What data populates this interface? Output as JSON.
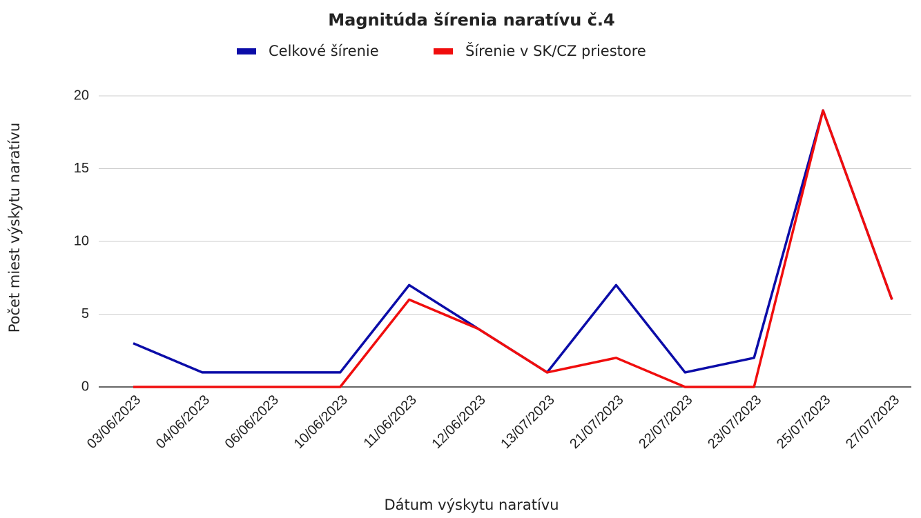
{
  "chart_data": {
    "type": "line",
    "title": "Magnitúda šírenia naratívu č.4",
    "x_label": "Dátum výskytu naratívu",
    "y_label": "Počet miest výskytu naratívu",
    "categories": [
      "03/06/2023",
      "04/06/2023",
      "06/06/2023",
      "10/06/2023",
      "11/06/2023",
      "12/06/2023",
      "13/07/2023",
      "21/07/2023",
      "22/07/2023",
      "23/07/2023",
      "25/07/2023",
      "27/07/2023"
    ],
    "series": [
      {
        "name": "Celkové šírenie",
        "color": "#0b0ca8",
        "values": [
          3,
          1,
          1,
          1,
          7,
          4,
          1,
          7,
          1,
          2,
          19,
          6
        ]
      },
      {
        "name": "Šírenie v SK/CZ priestore",
        "color": "#f00d0d",
        "values": [
          0,
          0,
          0,
          0,
          6,
          4,
          1,
          2,
          0,
          0,
          19,
          6
        ]
      }
    ],
    "ylim": [
      0,
      20
    ],
    "yticks": [
      0,
      5,
      10,
      15,
      20
    ],
    "grid": true,
    "legend": "top"
  }
}
